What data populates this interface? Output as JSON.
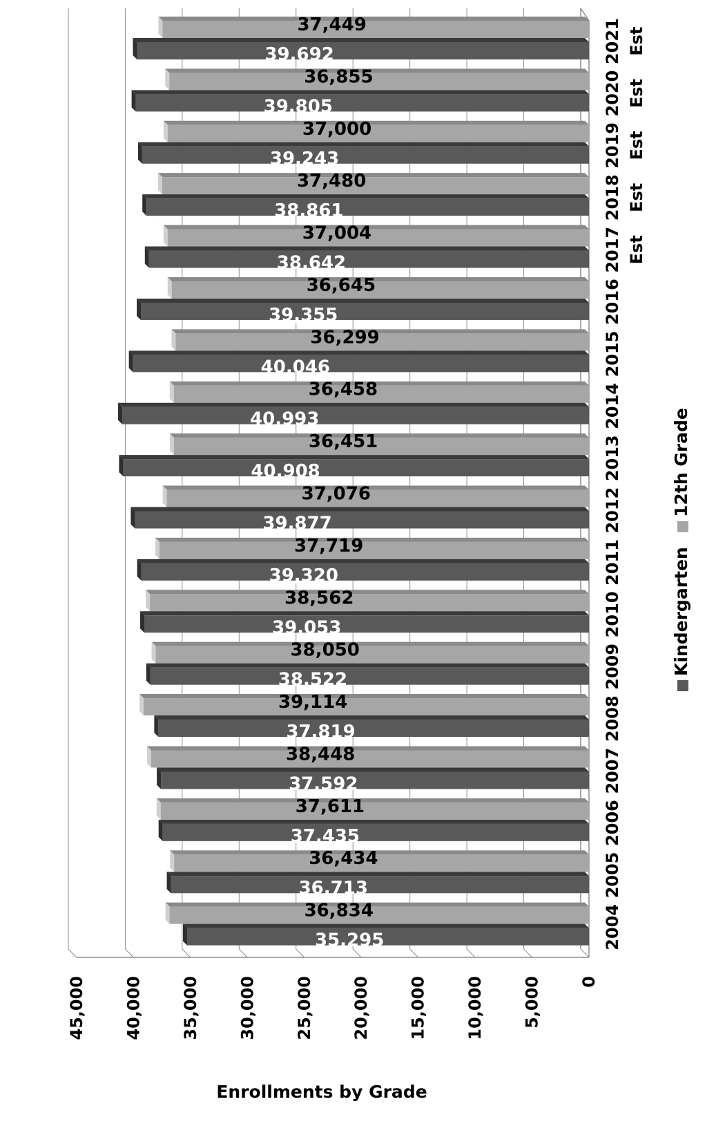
{
  "chart_data": {
    "type": "bar",
    "orientation": "horizontal",
    "title": "",
    "xlabel": "Enrollments by Grade",
    "ylabel": "",
    "xlim": [
      0,
      45000
    ],
    "x_ticks": [
      "0",
      "5,000",
      "10,000",
      "15,000",
      "20,000",
      "25,000",
      "30,000",
      "35,000",
      "40,000",
      "45,000"
    ],
    "grid": true,
    "legend_position": "right",
    "categories": [
      "2004",
      "2005",
      "2006",
      "2007",
      "2008",
      "2009",
      "2010",
      "2011",
      "2012",
      "2013",
      "2014",
      "2015",
      "2016",
      "2017 Est",
      "2018 Est",
      "2019 Est",
      "2020 Est",
      "2021 Est"
    ],
    "series": [
      {
        "name": "Kindergarten",
        "color": "#595959",
        "values": [
          35295,
          36713,
          37435,
          37592,
          37819,
          38522,
          39053,
          39320,
          39877,
          40908,
          40993,
          40046,
          39355,
          38642,
          38861,
          39243,
          39805,
          39692
        ],
        "labels": [
          "35,295",
          "36,713",
          "37,435",
          "37,592",
          "37,819",
          "38,522",
          "39,053",
          "39,320",
          "39,877",
          "40,908",
          "40,993",
          "40,046",
          "39,355",
          "38,642",
          "38,861",
          "39,243",
          "39,805",
          "39,692"
        ]
      },
      {
        "name": "12th Grade",
        "color": "#a6a6a6",
        "values": [
          36834,
          36434,
          37611,
          38448,
          39114,
          38050,
          38562,
          37719,
          37076,
          36451,
          36458,
          36299,
          36645,
          37004,
          37480,
          37000,
          36855,
          37449
        ],
        "labels": [
          "36,834",
          "36,434",
          "37,611",
          "38,448",
          "39,114",
          "38,050",
          "38,562",
          "37,719",
          "37,076",
          "36,451",
          "36,458",
          "36,299",
          "36,645",
          "37,004",
          "37,480",
          "37,000",
          "36,855",
          "37,449"
        ]
      }
    ]
  }
}
